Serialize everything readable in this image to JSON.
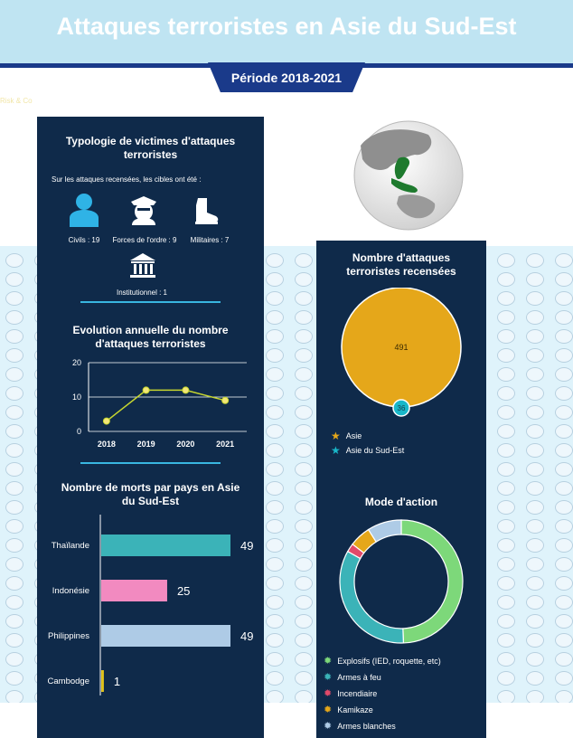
{
  "header": {
    "title": "Attaques terroristes en Asie du Sud-Est",
    "period": "Période 2018-2021",
    "tiny": "Risk & Co"
  },
  "victims": {
    "title": "Typologie de victimes d'attaques terroristes",
    "subtitle": "Sur les attaques recensées, les cibles ont été :",
    "items": [
      {
        "label": "Civils : 19",
        "icon": "civilian-icon"
      },
      {
        "label": "Forces de l'ordre : 9",
        "icon": "police-icon"
      },
      {
        "label": "Militaires : 7",
        "icon": "military-boot-icon"
      },
      {
        "label": "Institutionnel : 1",
        "icon": "institution-icon"
      }
    ]
  },
  "colors": {
    "panel": "#0f2a4a",
    "accent": "#39b6e0",
    "line": "#c6d62f",
    "asia": "#e5a71a",
    "sea": "#19b7c9"
  },
  "chart_data": [
    {
      "type": "line",
      "title": "Evolution annuelle du nombre d'attaques terroristes",
      "x": [
        "2018",
        "2019",
        "2020",
        "2021"
      ],
      "values": [
        3,
        12,
        12,
        9
      ],
      "ylim": [
        0,
        20
      ],
      "yticks": [
        0,
        10,
        20
      ],
      "grid": true
    },
    {
      "type": "bar",
      "title": "Nombre de morts par pays en Asie du Sud-Est",
      "categories": [
        "Thaïlande",
        "Indonésie",
        "Philippines",
        "Cambodge"
      ],
      "values": [
        49,
        25,
        49,
        1
      ],
      "colors": [
        "#3bb3b8",
        "#f28ac0",
        "#aecbe6",
        "#e0c21a"
      ]
    },
    {
      "type": "pie",
      "title": "Nombre d'attaques terroristes recensées",
      "series": [
        {
          "name": "Asie",
          "value": 491,
          "color": "#e5a71a"
        },
        {
          "name": "Asie du Sud-Est",
          "value": 36,
          "color": "#19b7c9"
        }
      ]
    },
    {
      "type": "pie",
      "title": "Mode d'action",
      "series": [
        {
          "name": "Explosifs (IED, roquette, etc)",
          "value": 44,
          "color": "#7dd87a"
        },
        {
          "name": "Armes à feu",
          "value": 30,
          "color": "#3bb3b8"
        },
        {
          "name": "Incendiaire",
          "value": 2,
          "color": "#e24a6a"
        },
        {
          "name": "Kamikaze",
          "value": 5,
          "color": "#e5a71a"
        },
        {
          "name": "Armes blanches",
          "value": 8,
          "color": "#aecbe6"
        }
      ]
    }
  ]
}
